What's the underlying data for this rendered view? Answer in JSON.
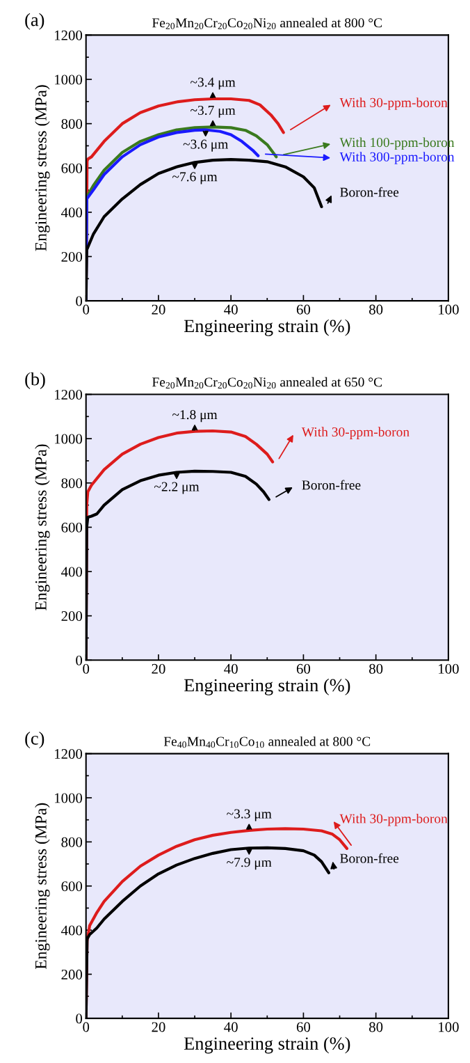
{
  "chart_data": [
    {
      "type": "line",
      "title": "Fe$_{20}$Mn$_{20}$Cr$_{20}$Co$_{20}$Ni$_{20}$ annealed at 800 °C",
      "xlabel": "Engineering strain (%)",
      "ylabel": "Engineering stress (MPa)",
      "xlim": [
        0,
        100
      ],
      "ylim": [
        0,
        1200
      ],
      "xticks": [
        0,
        20,
        40,
        60,
        80,
        100
      ],
      "yticks": [
        0,
        200,
        400,
        600,
        800,
        1000,
        1200
      ],
      "series": [
        {
          "name": "With 30-ppm-boron",
          "color": "#dd1c1c",
          "x": [
            0,
            0.3,
            0.5,
            1.5,
            5,
            10,
            15,
            20,
            25,
            30,
            35,
            40,
            45,
            48,
            51,
            53,
            54.5
          ],
          "values": [
            0,
            630,
            640,
            650,
            720,
            800,
            850,
            880,
            898,
            908,
            912,
            912,
            905,
            885,
            840,
            800,
            760
          ]
        },
        {
          "name": "With 100-ppm-boron",
          "color": "#3a7a1e",
          "x": [
            0,
            0.2,
            2,
            5,
            10,
            15,
            20,
            25,
            30,
            35,
            40,
            44,
            47,
            50,
            52.5
          ],
          "values": [
            0,
            470,
            520,
            590,
            670,
            720,
            750,
            772,
            782,
            785,
            782,
            770,
            745,
            705,
            650
          ]
        },
        {
          "name": "With 300-ppm-boron",
          "color": "#1a1aff",
          "x": [
            0,
            0.2,
            2,
            5,
            10,
            15,
            20,
            25,
            30,
            33,
            37,
            40,
            43,
            46,
            47.5
          ],
          "values": [
            0,
            460,
            500,
            570,
            650,
            705,
            740,
            760,
            770,
            772,
            765,
            750,
            720,
            680,
            655
          ]
        },
        {
          "name": "Boron-free",
          "color": "#000000",
          "x": [
            0,
            0.2,
            2,
            5,
            10,
            15,
            20,
            25,
            30,
            35,
            40,
            45,
            50,
            55,
            60,
            63,
            65
          ],
          "values": [
            0,
            230,
            300,
            380,
            460,
            525,
            575,
            605,
            625,
            635,
            638,
            635,
            628,
            605,
            560,
            510,
            425
          ]
        }
      ],
      "legend": "right",
      "annotations": [
        "(a)",
        {
          "text": "~3.4 μm",
          "x": 35,
          "y": 912
        },
        {
          "text": "~3.7 μm",
          "x": 35,
          "y": 785
        },
        {
          "text": "~3.6 μm",
          "x": 33,
          "y": 772
        },
        {
          "text": "~7.6 μm",
          "x": 30,
          "y": 625
        }
      ]
    },
    {
      "type": "line",
      "title": "Fe$_{20}$Mn$_{20}$Cr$_{20}$Co$_{20}$Ni$_{20}$ annealed at 650 °C",
      "xlabel": "Engineering strain (%)",
      "ylabel": "Engineering stress (MPa)",
      "xlim": [
        0,
        100
      ],
      "ylim": [
        0,
        1200
      ],
      "xticks": [
        0,
        20,
        40,
        60,
        80,
        100
      ],
      "yticks": [
        0,
        200,
        400,
        600,
        800,
        1000,
        1200
      ],
      "series": [
        {
          "name": "With 30-ppm-boron",
          "color": "#dd1c1c",
          "x": [
            0,
            0.2,
            0.5,
            1.5,
            5,
            10,
            15,
            20,
            25,
            30,
            35,
            40,
            44,
            47,
            50,
            51.5
          ],
          "values": [
            0,
            700,
            760,
            790,
            860,
            930,
            975,
            1005,
            1025,
            1033,
            1035,
            1030,
            1010,
            975,
            930,
            895
          ]
        },
        {
          "name": "Boron-free",
          "color": "#000000",
          "x": [
            0,
            0.2,
            0.5,
            1.5,
            3,
            5,
            10,
            15,
            20,
            25,
            30,
            35,
            40,
            44,
            47,
            49,
            50.5
          ],
          "values": [
            0,
            600,
            645,
            650,
            660,
            700,
            770,
            810,
            835,
            848,
            853,
            852,
            848,
            830,
            795,
            760,
            725
          ]
        }
      ],
      "legend": "right",
      "annotations": [
        "(b)",
        {
          "text": "~1.8 μm",
          "x": 30,
          "y": 1033
        },
        {
          "text": "~2.2 μm",
          "x": 25,
          "y": 848
        }
      ]
    },
    {
      "type": "line",
      "title": "Fe$_{40}$Mn$_{40}$Cr$_{10}$Co$_{10}$ annealed at 800 °C",
      "xlabel": "Engineering strain (%)",
      "ylabel": "Engineering stress (MPa)",
      "xlim": [
        0,
        100
      ],
      "ylim": [
        0,
        1200
      ],
      "xticks": [
        0,
        20,
        40,
        60,
        80,
        100
      ],
      "yticks": [
        0,
        200,
        400,
        600,
        800,
        1000,
        1200
      ],
      "series": [
        {
          "name": "With 30-ppm-boron",
          "color": "#dd1c1c",
          "x": [
            0,
            0.3,
            1,
            3,
            5,
            10,
            15,
            20,
            25,
            30,
            35,
            40,
            45,
            50,
            55,
            60,
            65,
            68,
            70,
            72
          ],
          "values": [
            0,
            350,
            420,
            480,
            530,
            620,
            690,
            740,
            780,
            810,
            830,
            843,
            852,
            858,
            860,
            858,
            850,
            835,
            810,
            770
          ]
        },
        {
          "name": "Boron-free",
          "color": "#000000",
          "x": [
            0,
            0.3,
            1,
            3,
            5,
            10,
            15,
            20,
            25,
            30,
            35,
            40,
            45,
            50,
            55,
            60,
            63,
            65,
            67
          ],
          "values": [
            0,
            360,
            380,
            410,
            450,
            530,
            600,
            655,
            695,
            725,
            748,
            765,
            772,
            773,
            770,
            760,
            740,
            710,
            660
          ]
        }
      ],
      "legend": "right",
      "annotations": [
        "(c)",
        {
          "text": "~3.3 μm",
          "x": 45,
          "y": 852
        },
        {
          "text": "~7.9 μm",
          "x": 45,
          "y": 772
        }
      ]
    }
  ]
}
